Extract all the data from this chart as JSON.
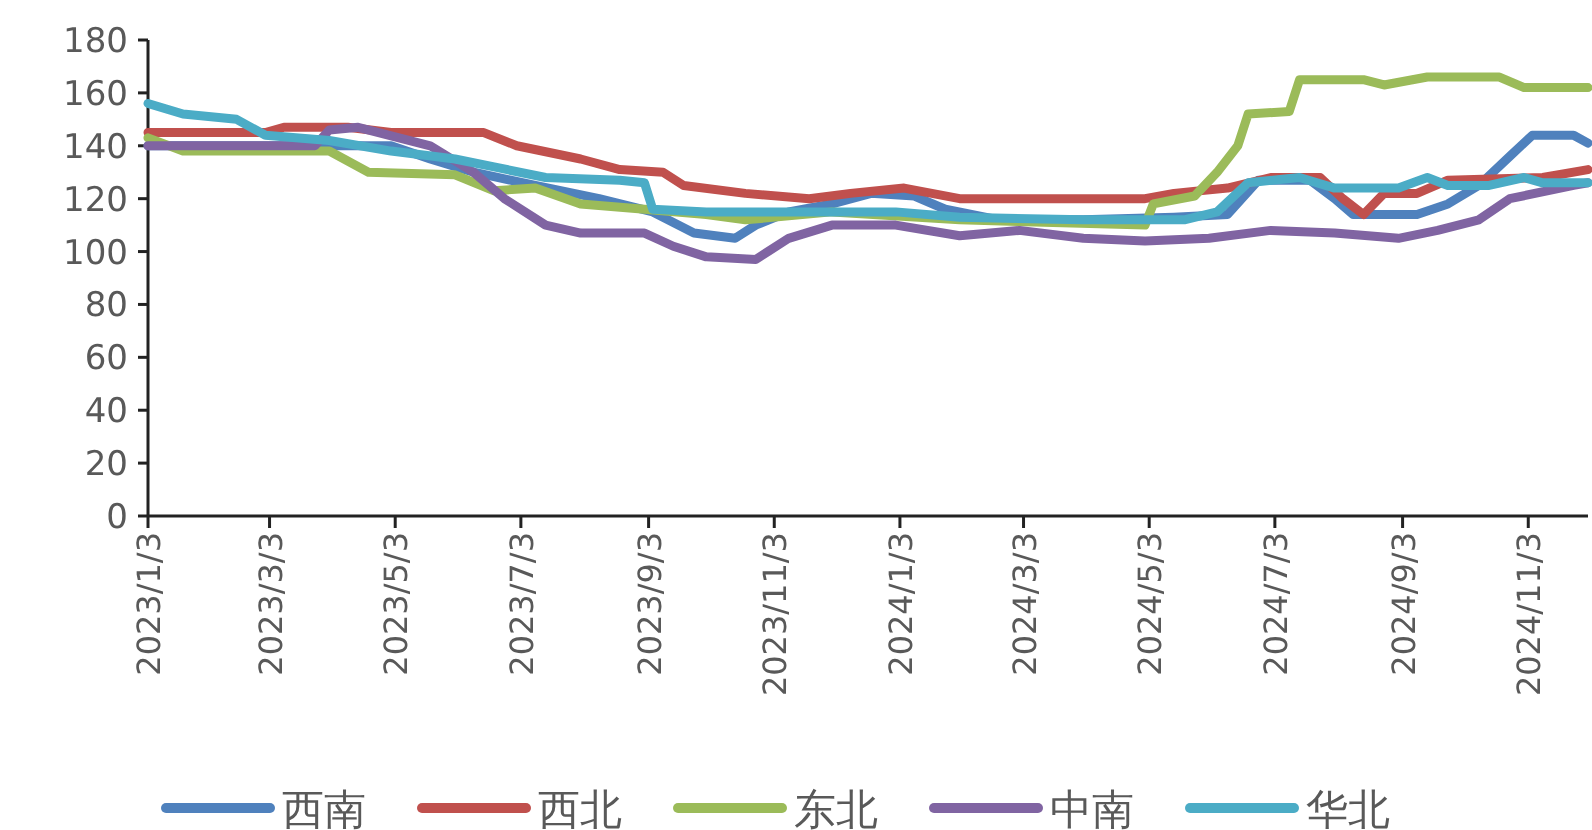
{
  "chart_data": {
    "type": "line",
    "xlim": [
      "2023-01-03",
      "2024-12-02"
    ],
    "ylim": [
      0,
      180
    ],
    "yticks": [
      0,
      20,
      40,
      60,
      80,
      100,
      120,
      140,
      160,
      180
    ],
    "xticks": [
      {
        "value": "2023-01-03",
        "label": "2023/1/3"
      },
      {
        "value": "2023-03-03",
        "label": "2023/3/3"
      },
      {
        "value": "2023-05-03",
        "label": "2023/5/3"
      },
      {
        "value": "2023-07-03",
        "label": "2023/7/3"
      },
      {
        "value": "2023-09-03",
        "label": "2023/9/3"
      },
      {
        "value": "2023-11-03",
        "label": "2023/11/3"
      },
      {
        "value": "2024-01-03",
        "label": "2024/1/3"
      },
      {
        "value": "2024-03-03",
        "label": "2024/3/3"
      },
      {
        "value": "2024-05-03",
        "label": "2024/5/3"
      },
      {
        "value": "2024-07-03",
        "label": "2024/7/3"
      },
      {
        "value": "2024-09-03",
        "label": "2024/9/3"
      },
      {
        "value": "2024-11-03",
        "label": "2024/11/3"
      }
    ],
    "grid": false,
    "legend": "bottom",
    "marker": "none",
    "line_style": "solid",
    "series": [
      {
        "name": "西南",
        "color": "#4f81bd",
        "x": [
          "2023-01-03",
          "2023-03-01",
          "2023-05-01",
          "2023-05-20",
          "2023-06-10",
          "2023-07-10",
          "2023-08-10",
          "2023-09-05",
          "2023-09-25",
          "2023-10-15",
          "2023-10-25",
          "2023-11-10",
          "2023-12-01",
          "2023-12-20",
          "2024-01-10",
          "2024-01-25",
          "2024-02-20",
          "2024-04-01",
          "2024-05-15",
          "2024-06-10",
          "2024-06-25",
          "2024-07-20",
          "2024-08-01",
          "2024-08-10",
          "2024-09-10",
          "2024-09-25",
          "2024-10-10",
          "2024-10-25",
          "2024-11-05",
          "2024-11-25",
          "2024-12-02"
        ],
        "values": [
          140,
          140,
          140,
          135,
          130,
          125,
          120,
          115,
          107,
          105,
          110,
          115,
          118,
          122,
          121,
          116,
          112,
          112,
          113,
          114,
          127,
          127,
          120,
          114,
          114,
          118,
          125,
          136,
          144,
          144,
          141
        ]
      },
      {
        "name": "西北",
        "color": "#c0504d",
        "x": [
          "2023-01-03",
          "2023-03-01",
          "2023-03-10",
          "2023-04-10",
          "2023-05-01",
          "2023-06-15",
          "2023-07-01",
          "2023-08-01",
          "2023-08-20",
          "2023-09-10",
          "2023-09-20",
          "2023-10-20",
          "2023-11-20",
          "2023-12-10",
          "2024-01-05",
          "2024-02-01",
          "2024-05-01",
          "2024-05-15",
          "2024-06-10",
          "2024-07-01",
          "2024-07-25",
          "2024-08-05",
          "2024-08-15",
          "2024-08-25",
          "2024-09-10",
          "2024-09-25",
          "2024-11-10",
          "2024-12-02"
        ],
        "values": [
          145,
          145,
          147,
          147,
          145,
          145,
          140,
          135,
          131,
          130,
          125,
          122,
          120,
          122,
          124,
          120,
          120,
          122,
          124,
          128,
          128,
          120,
          114,
          122,
          122,
          127,
          128,
          131
        ]
      },
      {
        "name": "东北",
        "color": "#9bbb59",
        "x": [
          "2023-01-03",
          "2023-01-20",
          "2023-04-01",
          "2023-04-20",
          "2023-06-01",
          "2023-06-20",
          "2023-07-10",
          "2023-08-01",
          "2023-09-01",
          "2023-10-01",
          "2023-10-20",
          "2023-12-01",
          "2024-02-01",
          "2024-05-01",
          "2024-05-05",
          "2024-05-25",
          "2024-06-05",
          "2024-06-15",
          "2024-06-20",
          "2024-07-10",
          "2024-07-15",
          "2024-08-15",
          "2024-08-25",
          "2024-09-15",
          "2024-10-20",
          "2024-11-01",
          "2024-12-02"
        ],
        "values": [
          143,
          138,
          138,
          130,
          129,
          123,
          124,
          118,
          116,
          114,
          112,
          115,
          112,
          110,
          118,
          121,
          130,
          140,
          152,
          153,
          165,
          165,
          163,
          166,
          166,
          162,
          162
        ]
      },
      {
        "name": "中南",
        "color": "#8064a2",
        "x": [
          "2023-01-03",
          "2023-03-25",
          "2023-04-01",
          "2023-04-15",
          "2023-05-20",
          "2023-06-10",
          "2023-06-25",
          "2023-07-15",
          "2023-08-01",
          "2023-09-01",
          "2023-09-15",
          "2023-10-01",
          "2023-10-25",
          "2023-11-10",
          "2023-12-01",
          "2024-01-01",
          "2024-02-01",
          "2024-03-01",
          "2024-04-01",
          "2024-05-01",
          "2024-06-01",
          "2024-07-01",
          "2024-08-01",
          "2024-09-01",
          "2024-09-20",
          "2024-10-10",
          "2024-10-25",
          "2024-11-25",
          "2024-12-02"
        ],
        "values": [
          140,
          140,
          146,
          147,
          140,
          130,
          120,
          110,
          107,
          107,
          102,
          98,
          97,
          105,
          110,
          110,
          106,
          108,
          105,
          104,
          105,
          108,
          107,
          105,
          108,
          112,
          120,
          125,
          126
        ]
      },
      {
        "name": "华北",
        "color": "#4bacc6",
        "x": [
          "2023-01-03",
          "2023-01-20",
          "2023-02-15",
          "2023-03-01",
          "2023-04-01",
          "2023-05-01",
          "2023-06-01",
          "2023-06-20",
          "2023-07-15",
          "2023-08-20",
          "2023-09-01",
          "2023-09-05",
          "2023-10-01",
          "2023-12-01",
          "2024-01-01",
          "2024-02-01",
          "2024-04-01",
          "2024-05-20",
          "2024-06-05",
          "2024-06-20",
          "2024-07-15",
          "2024-08-01",
          "2024-09-01",
          "2024-09-15",
          "2024-09-25",
          "2024-10-15",
          "2024-11-01",
          "2024-11-10",
          "2024-12-02"
        ],
        "values": [
          156,
          152,
          150,
          144,
          142,
          138,
          135,
          132,
          128,
          127,
          126,
          116,
          115,
          115,
          115,
          113,
          112,
          112,
          115,
          126,
          128,
          124,
          124,
          128,
          125,
          125,
          128,
          126,
          126
        ]
      }
    ]
  }
}
